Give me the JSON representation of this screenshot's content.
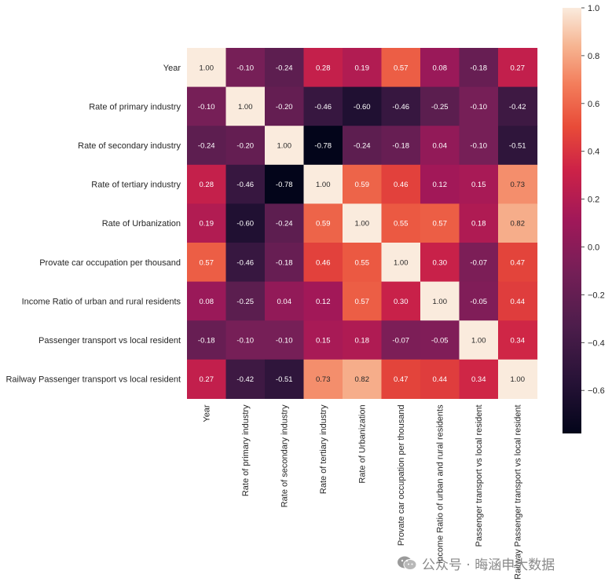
{
  "chart_data": {
    "type": "heatmap",
    "title": "",
    "xlabel": "",
    "ylabel": "",
    "labels": [
      "Year",
      "Rate of primary industry",
      "Rate of secondary industry",
      "Rate of tertiary industry",
      "Rate of Urbanization",
      "Provate car occupation per thousand",
      "Income Ratio of urban and rural residents",
      "Passenger transport vs local resident",
      "Railway Passenger transport vs local resident"
    ],
    "values": [
      [
        1.0,
        -0.1,
        -0.24,
        0.28,
        0.19,
        0.57,
        0.08,
        -0.18,
        0.27
      ],
      [
        -0.1,
        1.0,
        -0.2,
        -0.46,
        -0.6,
        -0.46,
        -0.25,
        -0.1,
        -0.42
      ],
      [
        -0.24,
        -0.2,
        1.0,
        -0.78,
        -0.24,
        -0.18,
        0.04,
        -0.1,
        -0.51
      ],
      [
        0.28,
        -0.46,
        -0.78,
        1.0,
        0.59,
        0.46,
        0.12,
        0.15,
        0.73
      ],
      [
        0.19,
        -0.6,
        -0.24,
        0.59,
        1.0,
        0.55,
        0.57,
        0.18,
        0.82
      ],
      [
        0.57,
        -0.46,
        -0.18,
        0.46,
        0.55,
        1.0,
        0.3,
        -0.07,
        0.47
      ],
      [
        0.08,
        -0.25,
        0.04,
        0.12,
        0.57,
        0.3,
        1.0,
        -0.05,
        0.44
      ],
      [
        -0.18,
        -0.1,
        -0.1,
        0.15,
        0.18,
        -0.07,
        -0.05,
        1.0,
        0.34
      ],
      [
        0.27,
        -0.42,
        -0.51,
        0.73,
        0.82,
        0.47,
        0.44,
        0.34,
        1.0
      ]
    ],
    "value_format": "2 decimals",
    "colormap": "rocket",
    "colorbar": {
      "range": [
        -0.78,
        1.0
      ],
      "ticks": [
        -0.6,
        -0.4,
        -0.2,
        0.0,
        0.2,
        0.4,
        0.6,
        0.8,
        1.0
      ],
      "tick_labels": [
        "−0.6",
        "−0.4",
        "−0.2",
        "0.0",
        "0.2",
        "0.4",
        "0.6",
        "0.8",
        "1.0"
      ],
      "placement": "right"
    },
    "grid": false
  },
  "watermark": {
    "text": "公众号 · 晦涵申大数据"
  }
}
